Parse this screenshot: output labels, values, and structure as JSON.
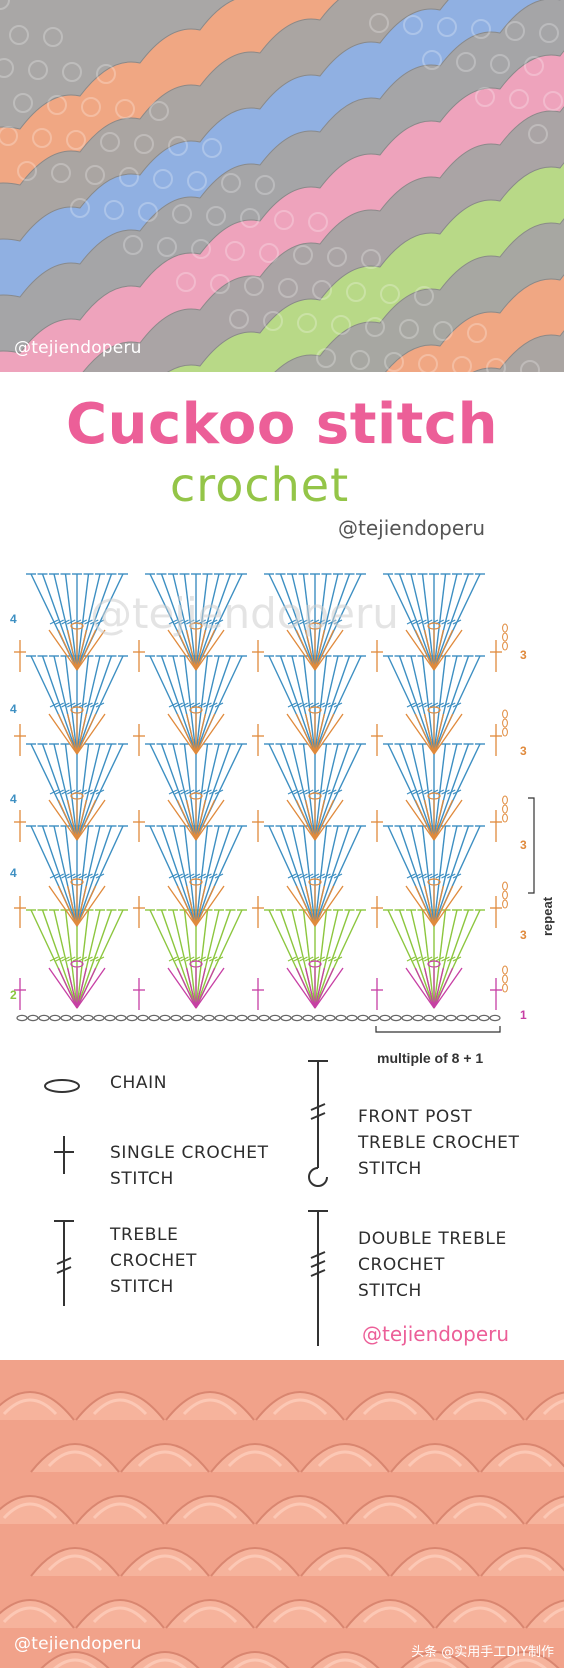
{
  "top_watermark": "@tejiendoperu",
  "title": "Cuckoo stitch",
  "subtitle": "crochet",
  "chart_handle": "@tejiendoperu",
  "row_labels_left": [
    "4",
    "4",
    "4",
    "4",
    "2"
  ],
  "row_labels_right": [
    "3",
    "3",
    "3",
    "3",
    "1"
  ],
  "repeat_label": "repeat",
  "multiple_label": "multiple of 8 + 1",
  "legend": {
    "chain": "chain",
    "single_crochet": [
      "single crochet",
      "stitch"
    ],
    "treble_crochet": [
      "treble",
      "crochet",
      "stitch"
    ],
    "front_post_treble": [
      "front post",
      "treble crochet",
      "stitch"
    ],
    "double_treble": [
      "double treble",
      "crochet",
      "stitch"
    ]
  },
  "legend_handle": "@tejiendoperu",
  "bottom_watermark": "@tejiendoperu",
  "credit": "头条 @实用手工DIY制作",
  "colors": {
    "title_pink": "#ec5f98",
    "subtitle_green": "#94c548",
    "row_blue": "#3d8fc2",
    "row_orange": "#e08a3c",
    "row_magenta": "#c73fa4",
    "row_green": "#8cc63e",
    "yarn_peach": "#f4a882",
    "yarn_blue": "#8fb1e6",
    "yarn_pink": "#f2a3be",
    "yarn_grey": "#a7a5a4",
    "yarn_green": "#b9dc86"
  }
}
